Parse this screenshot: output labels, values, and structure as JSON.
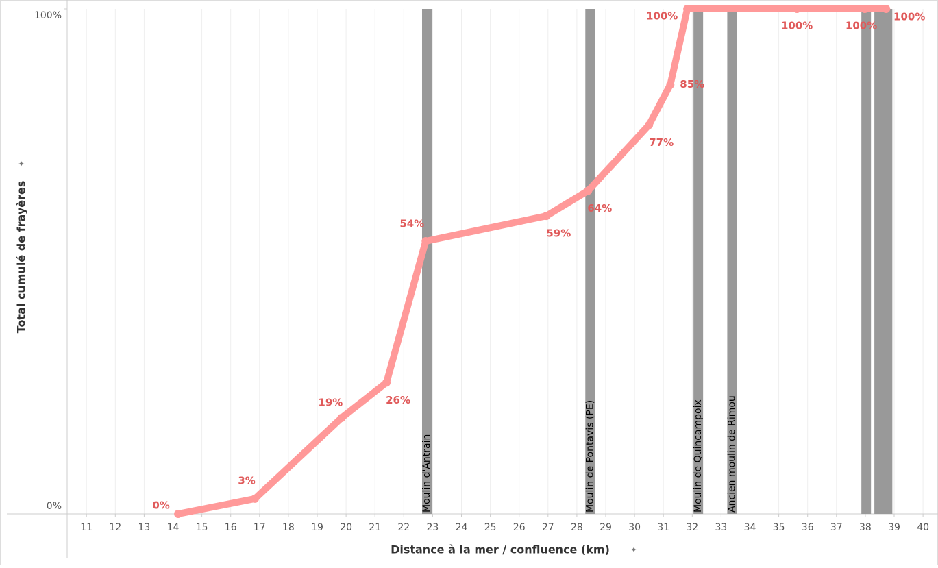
{
  "chart_data": {
    "type": "line",
    "x_label": "Distance à la mer / confluence (km)",
    "y_label": "Total cumulé de frayères",
    "x": [
      14.18,
      16.84,
      19.84,
      21.4,
      22.76,
      26.94,
      28.39,
      30.5,
      31.24,
      31.83,
      35.63,
      37.98,
      38.72
    ],
    "values": [
      0,
      3,
      19,
      26,
      54,
      59,
      64,
      77,
      85,
      100,
      100,
      100,
      100
    ],
    "value_labels": [
      "0%",
      "3%",
      "19%",
      "26%",
      "54%",
      "59%",
      "64%",
      "77%",
      "85%",
      "100%",
      "100%",
      "100%",
      "100%"
    ],
    "color": "#ff9999",
    "label_color": "#e05a5a",
    "mills": {
      "x": [
        22.8,
        28.46,
        32.21,
        33.38,
        38.03,
        38.48,
        38.77
      ],
      "labels": [
        "Moulin d'Antrain",
        "Moulin de Pontavis (PE)",
        "Moulin de Quincampoix",
        "Ancien moulin de Rimou",
        null,
        null,
        null
      ],
      "color": "#999999"
    },
    "xlim": [
      10.33,
      40.52
    ],
    "ylim": [
      0,
      100
    ],
    "xticks": [
      11,
      12,
      13,
      14,
      15,
      16,
      17,
      18,
      19,
      20,
      21,
      22,
      23,
      24,
      25,
      26,
      27,
      28,
      29,
      30,
      31,
      32,
      33,
      34,
      35,
      36,
      37,
      38,
      39,
      40
    ],
    "yticks": [
      {
        "value": 0,
        "label": "0%"
      },
      {
        "value": 100,
        "label": "100%"
      }
    ],
    "grid": true
  }
}
